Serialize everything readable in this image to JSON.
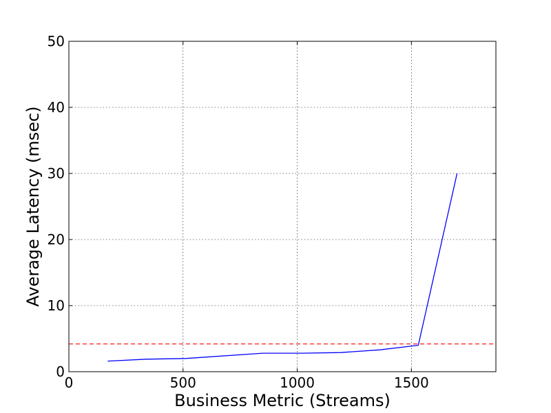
{
  "chart_data": {
    "type": "line",
    "title": "",
    "xlabel": "Business Metric (Streams)",
    "ylabel": "Average Latency (msec)",
    "xlim": [
      0,
      1870
    ],
    "ylim": [
      0,
      50
    ],
    "x_ticks": [
      0,
      500,
      1000,
      1500
    ],
    "x_tick_labels": [
      "0",
      "500",
      "1000",
      "1500"
    ],
    "y_ticks": [
      0,
      10,
      20,
      30,
      40,
      50
    ],
    "y_tick_labels": [
      "0",
      "10",
      "20",
      "30",
      "40",
      "50"
    ],
    "grid": true,
    "grid_style": "dotted",
    "legend": "none",
    "series": [
      {
        "color": "#0000ff",
        "line_style": "solid",
        "x": [
          170,
          340,
          510,
          850,
          1020,
          1190,
          1360,
          1530,
          1700
        ],
        "y": [
          1.6,
          1.9,
          2.0,
          2.8,
          2.8,
          2.9,
          3.3,
          4.0,
          30.0
        ]
      }
    ],
    "reference_lines": [
      {
        "orientation": "horizontal",
        "y": 4.2,
        "color": "#ff0000",
        "line_style": "dashed"
      }
    ]
  }
}
